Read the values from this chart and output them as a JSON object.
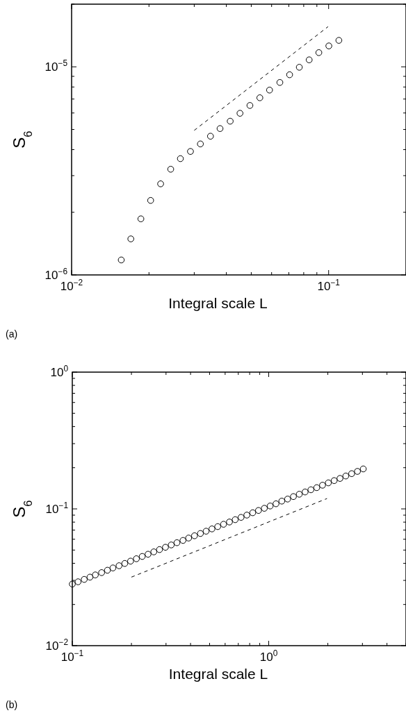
{
  "chart_data": [
    {
      "type": "scatter",
      "xlabel": "Integral scale L",
      "ylabel": "S$_{6}$",
      "log": "xy",
      "grid": false,
      "annotations": [
        "(a)"
      ],
      "xlim": [
        0.01,
        0.2
      ],
      "ylim": [
        1e-06,
        2e-05
      ],
      "xticks": [
        {
          "value": 0.01,
          "label": "10$^{−2}$"
        },
        {
          "value": 0.02,
          "label": null
        },
        {
          "value": 0.03,
          "label": null
        },
        {
          "value": 0.04,
          "label": null
        },
        {
          "value": 0.05,
          "label": null
        },
        {
          "value": 0.06,
          "label": null
        },
        {
          "value": 0.07,
          "label": null
        },
        {
          "value": 0.08,
          "label": null
        },
        {
          "value": 0.09,
          "label": null
        },
        {
          "value": 0.1,
          "label": "10$^{−1}$"
        },
        {
          "value": 0.2,
          "label": null
        }
      ],
      "yticks": [
        {
          "value": 1e-06,
          "label": "10$^{−6}$"
        },
        {
          "value": 2e-06,
          "label": null
        },
        {
          "value": 3e-06,
          "label": null
        },
        {
          "value": 4e-06,
          "label": null
        },
        {
          "value": 5e-06,
          "label": null
        },
        {
          "value": 6e-06,
          "label": null
        },
        {
          "value": 7e-06,
          "label": null
        },
        {
          "value": 8e-06,
          "label": null
        },
        {
          "value": 9e-06,
          "label": null
        },
        {
          "value": 1e-05,
          "label": "10$^{−5}$"
        },
        {
          "value": 2e-05,
          "label": null
        }
      ],
      "series": [
        {
          "type": "scatter",
          "color": "#000000",
          "marker": "circle",
          "x": [
            0.0156,
            0.017,
            0.0186,
            0.0203,
            0.0222,
            0.0243,
            0.0265,
            0.029,
            0.0317,
            0.0347,
            0.0378,
            0.0414,
            0.0452,
            0.0494,
            0.054,
            0.0589,
            0.0646,
            0.0705,
            0.0769,
            0.084,
            0.0916,
            0.1002,
            0.1096
          ],
          "values": [
            1.18e-06,
            1.49e-06,
            1.86e-06,
            2.28e-06,
            2.74e-06,
            3.22e-06,
            3.62e-06,
            3.92e-06,
            4.26e-06,
            4.64e-06,
            5.05e-06,
            5.48e-06,
            5.98e-06,
            6.52e-06,
            7.1e-06,
            7.73e-06,
            8.41e-06,
            9.16e-06,
            9.95e-06,
            1.08e-05,
            1.17e-05,
            1.26e-05,
            1.34e-05
          ]
        },
        {
          "type": "line",
          "color": "#000000",
          "marker": "none",
          "line_style": "dashed",
          "x": [
            0.03,
            0.0995
          ],
          "values": [
            4.95e-06,
            1.56e-05
          ]
        }
      ]
    },
    {
      "type": "scatter",
      "xlabel": "Integral scale L",
      "ylabel": "S$_{6}$",
      "log": "xy",
      "grid": false,
      "annotations": [
        "(b)"
      ],
      "xlim": [
        0.1,
        5
      ],
      "ylim": [
        0.01,
        1
      ],
      "xticks": [
        {
          "value": 0.1,
          "label": "10$^{−1}$"
        },
        {
          "value": 0.2,
          "label": null
        },
        {
          "value": 0.3,
          "label": null
        },
        {
          "value": 0.4,
          "label": null
        },
        {
          "value": 0.5,
          "label": null
        },
        {
          "value": 0.6,
          "label": null
        },
        {
          "value": 0.7,
          "label": null
        },
        {
          "value": 0.8,
          "label": null
        },
        {
          "value": 0.9,
          "label": null
        },
        {
          "value": 1,
          "label": "10$^{0}$"
        },
        {
          "value": 2,
          "label": null
        },
        {
          "value": 3,
          "label": null
        },
        {
          "value": 4,
          "label": null
        },
        {
          "value": 5,
          "label": null
        }
      ],
      "yticks": [
        {
          "value": 0.01,
          "label": "10$^{−2}$"
        },
        {
          "value": 0.02,
          "label": null
        },
        {
          "value": 0.03,
          "label": null
        },
        {
          "value": 0.04,
          "label": null
        },
        {
          "value": 0.05,
          "label": null
        },
        {
          "value": 0.06,
          "label": null
        },
        {
          "value": 0.07,
          "label": null
        },
        {
          "value": 0.08,
          "label": null
        },
        {
          "value": 0.09,
          "label": null
        },
        {
          "value": 0.1,
          "label": "10$^{−1}$"
        },
        {
          "value": 0.2,
          "label": null
        },
        {
          "value": 0.3,
          "label": null
        },
        {
          "value": 0.4,
          "label": null
        },
        {
          "value": 0.5,
          "label": null
        },
        {
          "value": 0.6,
          "label": null
        },
        {
          "value": 0.7,
          "label": null
        },
        {
          "value": 0.8,
          "label": null
        },
        {
          "value": 0.9,
          "label": null
        },
        {
          "value": 1,
          "label": "10$^{0}$"
        }
      ],
      "series": [
        {
          "type": "scatter",
          "color": "#000000",
          "marker": "circle",
          "x": [
            0.1,
            0.107,
            0.115,
            0.123,
            0.131,
            0.141,
            0.151,
            0.161,
            0.173,
            0.185,
            0.198,
            0.212,
            0.227,
            0.243,
            0.26,
            0.278,
            0.298,
            0.319,
            0.341,
            0.366,
            0.391,
            0.419,
            0.449,
            0.48,
            0.514,
            0.55,
            0.589,
            0.631,
            0.675,
            0.723,
            0.774,
            0.829,
            0.887,
            0.95,
            1.017,
            1.089,
            1.166,
            1.248,
            1.336,
            1.431,
            1.532,
            1.64,
            1.756,
            1.879,
            2.012,
            2.154,
            2.306,
            2.469,
            2.644,
            2.83,
            3.03
          ],
          "values": [
            0.0282,
            0.0293,
            0.0305,
            0.0317,
            0.0329,
            0.0342,
            0.0356,
            0.037,
            0.0384,
            0.0399,
            0.0415,
            0.0432,
            0.0449,
            0.0466,
            0.0485,
            0.0504,
            0.0524,
            0.0545,
            0.0566,
            0.0588,
            0.0612,
            0.0636,
            0.0661,
            0.0687,
            0.0714,
            0.0742,
            0.0772,
            0.0802,
            0.0834,
            0.0867,
            0.0901,
            0.0937,
            0.0974,
            0.101,
            0.105,
            0.109,
            0.114,
            0.118,
            0.123,
            0.128,
            0.133,
            0.138,
            0.143,
            0.149,
            0.155,
            0.161,
            0.167,
            0.174,
            0.181,
            0.188,
            0.196
          ]
        },
        {
          "type": "line",
          "color": "#000000",
          "marker": "none",
          "line_style": "dashed",
          "x": [
            0.2,
            1.98
          ],
          "values": [
            0.0317,
            0.119
          ]
        }
      ]
    }
  ]
}
